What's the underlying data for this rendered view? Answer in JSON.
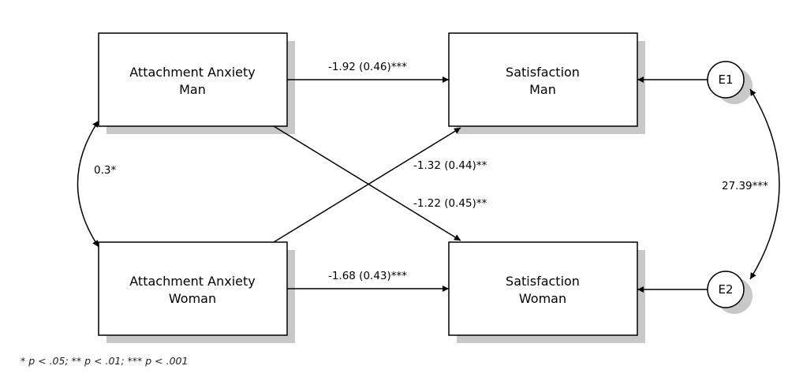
{
  "nodes": {
    "anx_man": {
      "line1": "Attachment Anxiety",
      "line2": "Man"
    },
    "anx_woman": {
      "line1": "Attachment Anxiety",
      "line2": "Woman"
    },
    "sat_man": {
      "line1": "Satisfaction",
      "line2": "Man"
    },
    "sat_woman": {
      "line1": "Satisfaction",
      "line2": "Woman"
    },
    "e1": {
      "label": "E1"
    },
    "e2": {
      "label": "E2"
    }
  },
  "paths": {
    "anx_man_to_sat_man": "-1.92 (0.46)***",
    "anx_woman_to_sat_man": "-1.32 (0.44)**",
    "anx_man_to_sat_woman": "-1.22 (0.45)**",
    "anx_woman_to_sat_woman": "-1.68 (0.43)***",
    "cov_anxiety": "0.3*",
    "cov_errors": "27.39***"
  },
  "footnote": "* p < .05; ** p < .01; *** p < .001",
  "colors": {
    "shadow": "#c8c8c8",
    "line": "#000000",
    "fill": "#ffffff"
  }
}
